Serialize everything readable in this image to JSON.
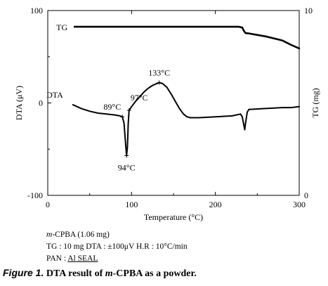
{
  "chart_data": {
    "type": "line",
    "xlabel": "Temperature (°C)",
    "ylabel_left": "DTA (μV)",
    "ylabel_right": "TG (mg)",
    "xlim": [
      0,
      300
    ],
    "ylim_left": [
      -100,
      100
    ],
    "ylim_right": [
      0,
      10
    ],
    "x_ticks": [
      0,
      100,
      200,
      300
    ],
    "y_left_ticks": [
      100,
      0,
      -100
    ],
    "y_right_ticks": [
      10,
      0
    ],
    "x_tick_labels": [
      "0",
      "100",
      "200",
      "300"
    ],
    "y_left_tick_labels": [
      "100",
      "0",
      "-100"
    ],
    "y_right_tick_labels": [
      "10",
      "0"
    ],
    "grid": false,
    "series": [
      {
        "name": "TG",
        "axis": "right",
        "x": [
          32,
          100,
          150,
          200,
          228,
          232,
          234,
          236,
          240,
          260,
          280,
          290,
          300
        ],
        "y": [
          9.12,
          9.12,
          9.12,
          9.12,
          9.12,
          9.08,
          8.9,
          8.78,
          8.76,
          8.6,
          8.38,
          8.15,
          7.95
        ]
      },
      {
        "name": "DTA",
        "axis": "left",
        "x": [
          30,
          40,
          50,
          60,
          70,
          80,
          86,
          89,
          91,
          93,
          94,
          95,
          96,
          97,
          100,
          105,
          110,
          115,
          120,
          125,
          130,
          133,
          137,
          142,
          147,
          152,
          157,
          162,
          166,
          170,
          175,
          180,
          200,
          220,
          230,
          232,
          234,
          235,
          236,
          238,
          240,
          260,
          280,
          290,
          300
        ],
        "y": [
          -2,
          -6,
          -9,
          -11,
          -12,
          -13,
          -14,
          -15,
          -22,
          -46,
          -57,
          -48,
          -22,
          -8,
          -4,
          2,
          7,
          12,
          16,
          19,
          21,
          22,
          21,
          17,
          10,
          2,
          -6,
          -12,
          -15,
          -16,
          -16,
          -16,
          -15,
          -14,
          -12,
          -15,
          -24,
          -29,
          -22,
          -10,
          -7,
          -6,
          -5,
          -5,
          -4
        ]
      }
    ],
    "annotations": [
      {
        "text": "TG",
        "series": "TG"
      },
      {
        "text": "DTA",
        "series": "DTA"
      },
      {
        "text": "89°C",
        "x": 89,
        "y": -15
      },
      {
        "text": "97°C",
        "x": 97,
        "y": -8
      },
      {
        "text": "94°C",
        "x": 94,
        "y": -57
      },
      {
        "text": "133°C",
        "x": 133,
        "y": 22
      }
    ]
  },
  "caption": {
    "sample_prefix": "m",
    "sample_rest": "-CPBA (1.06 mg)",
    "conditions": "TG : 10 mg  DTA : ±100μV  H.R : 10°C/min",
    "pan_label": "PAN : ",
    "pan_value": "Al SEAL"
  },
  "figure": {
    "label": "Figure 1.",
    "title_pre": "DTA result of ",
    "title_italic": "m",
    "title_post": "-CPBA as a powder."
  }
}
